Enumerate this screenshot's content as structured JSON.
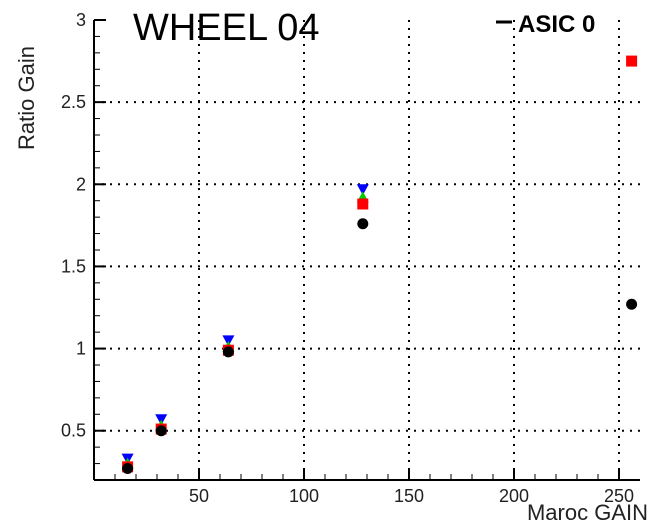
{
  "chart_data": {
    "type": "scatter",
    "title": "WHEEL 04",
    "xlabel": "Maroc GAIN",
    "ylabel": "Ratio Gain",
    "xlim": [
      0,
      260
    ],
    "ylim": [
      0.2,
      3.0
    ],
    "x_ticks": [
      50,
      100,
      150,
      200,
      250
    ],
    "y_ticks": [
      0.5,
      1,
      1.5,
      2,
      2.5,
      3
    ],
    "y_tick_labels": [
      "0.5",
      "1",
      "1.5",
      "2",
      "2.5",
      "3"
    ],
    "grid": true,
    "legend": {
      "label": "ASIC 0",
      "placement": "top-right"
    },
    "series": [
      {
        "marker": "circle",
        "color": "#000000",
        "x": [
          16,
          32,
          64,
          128,
          256
        ],
        "y": [
          0.27,
          0.5,
          0.98,
          1.76,
          1.27
        ]
      },
      {
        "marker": "square",
        "color": "#ff0000",
        "x": [
          16,
          32,
          64,
          128,
          256
        ],
        "y": [
          0.28,
          0.51,
          0.99,
          1.88,
          2.75
        ]
      },
      {
        "marker": "triangle-up",
        "color": "#00cc00",
        "x": [
          16,
          32,
          64,
          128
        ],
        "y": [
          0.3,
          0.53,
          1.01,
          1.92
        ]
      },
      {
        "marker": "triangle-down",
        "color": "#0000ff",
        "x": [
          16,
          32,
          64,
          128
        ],
        "y": [
          0.33,
          0.57,
          1.05,
          1.97
        ]
      }
    ]
  }
}
